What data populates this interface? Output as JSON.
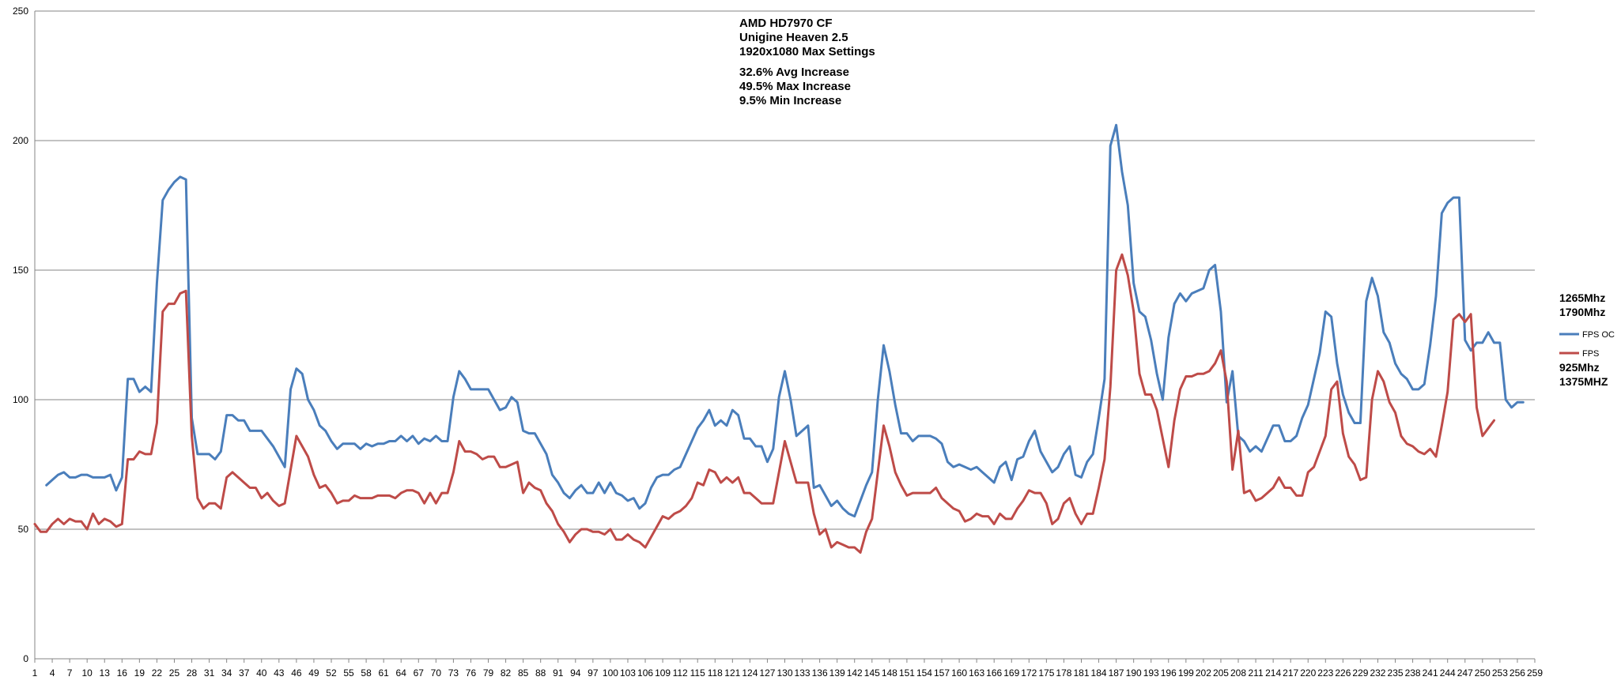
{
  "chart_data": {
    "type": "line",
    "title_lines": [
      "AMD HD7970 CF",
      "Unigine Heaven 2.5",
      "1920x1080 Max Settings"
    ],
    "stat_lines": [
      "32.6% Avg Increase",
      "49.5% Max Increase",
      "9.5% Min Increase"
    ],
    "xlabel": "",
    "ylabel": "",
    "ylim": [
      0,
      250
    ],
    "yticks": [
      0,
      50,
      100,
      150,
      200,
      250
    ],
    "xlim": [
      1,
      259
    ],
    "xticks": [
      1,
      4,
      7,
      10,
      13,
      16,
      19,
      22,
      25,
      28,
      31,
      34,
      37,
      40,
      43,
      46,
      49,
      52,
      55,
      58,
      61,
      64,
      67,
      70,
      73,
      76,
      79,
      82,
      85,
      88,
      91,
      94,
      97,
      100,
      103,
      106,
      109,
      112,
      115,
      118,
      121,
      124,
      127,
      130,
      133,
      136,
      139,
      142,
      145,
      148,
      151,
      154,
      157,
      160,
      163,
      166,
      169,
      172,
      175,
      178,
      181,
      184,
      187,
      190,
      193,
      196,
      199,
      202,
      205,
      208,
      211,
      214,
      217,
      220,
      223,
      226,
      229,
      232,
      235,
      238,
      241,
      244,
      247,
      250,
      253,
      256,
      259
    ],
    "grid": true,
    "legend_position": "right",
    "legend_top_note": [
      "1265Mhz",
      "1790Mhz"
    ],
    "legend_bottom_note": [
      "925Mhz",
      "1375MHZ"
    ],
    "series": [
      {
        "name": "FPS OC",
        "color": "#4a7ebb",
        "start_x": 3,
        "values": [
          67,
          69,
          71,
          72,
          70,
          70,
          71,
          71,
          70,
          70,
          70,
          71,
          65,
          70,
          108,
          108,
          103,
          105,
          103,
          145,
          177,
          181,
          184,
          186,
          185,
          93,
          79,
          79,
          79,
          77,
          80,
          94,
          94,
          92,
          92,
          88,
          88,
          88,
          85,
          82,
          78,
          74,
          104,
          112,
          110,
          100,
          96,
          90,
          88,
          84,
          81,
          83,
          83,
          83,
          81,
          83,
          82,
          83,
          83,
          84,
          84,
          86,
          84,
          86,
          83,
          85,
          84,
          86,
          84,
          84,
          101,
          111,
          108,
          104,
          104,
          104,
          104,
          100,
          96,
          97,
          101,
          99,
          88,
          87,
          87,
          83,
          79,
          71,
          68,
          64,
          62,
          65,
          67,
          64,
          64,
          68,
          64,
          68,
          64,
          63,
          61,
          62,
          58,
          60,
          66,
          70,
          71,
          71,
          73,
          74,
          79,
          84,
          89,
          92,
          96,
          90,
          92,
          90,
          96,
          94,
          85,
          85,
          82,
          82,
          76,
          81,
          101,
          111,
          100,
          86,
          88,
          90,
          66,
          67,
          63,
          59,
          61,
          58,
          56,
          55,
          61,
          67,
          72,
          100,
          121,
          111,
          98,
          87,
          87,
          84,
          86,
          86,
          86,
          85,
          83,
          76,
          74,
          75,
          74,
          73,
          74,
          72,
          70,
          68,
          74,
          76,
          69,
          77,
          78,
          84,
          88,
          80,
          76,
          72,
          74,
          79,
          82,
          71,
          70,
          76,
          79,
          93,
          108,
          198,
          206,
          188,
          175,
          145,
          134,
          132,
          123,
          110,
          100,
          124,
          137,
          141,
          138,
          141,
          142,
          143,
          150,
          152,
          134,
          99,
          111,
          86,
          84,
          80,
          82,
          80,
          85,
          90,
          90,
          84,
          84,
          86,
          93,
          98,
          108,
          118,
          134,
          132,
          114,
          102,
          95,
          91,
          91,
          138,
          147,
          140,
          126,
          122,
          114,
          110,
          108,
          104,
          104,
          106,
          121,
          140,
          172,
          176,
          178,
          178,
          123,
          119,
          122,
          122,
          126,
          122,
          122,
          100,
          97,
          99,
          99
        ]
      },
      {
        "name": "FPS",
        "color": "#be4b48",
        "start_x": 1,
        "values": [
          52,
          49,
          49,
          52,
          54,
          52,
          54,
          53,
          53,
          50,
          56,
          52,
          54,
          53,
          51,
          52,
          77,
          77,
          80,
          79,
          79,
          91,
          134,
          137,
          137,
          141,
          142,
          86,
          62,
          58,
          60,
          60,
          58,
          70,
          72,
          70,
          68,
          66,
          66,
          62,
          64,
          61,
          59,
          60,
          73,
          86,
          82,
          78,
          71,
          66,
          67,
          64,
          60,
          61,
          61,
          63,
          62,
          62,
          62,
          63,
          63,
          63,
          62,
          64,
          65,
          65,
          64,
          60,
          64,
          60,
          64,
          64,
          72,
          84,
          80,
          80,
          79,
          77,
          78,
          78,
          74,
          74,
          75,
          76,
          64,
          68,
          66,
          65,
          60,
          57,
          52,
          49,
          45,
          48,
          50,
          50,
          49,
          49,
          48,
          50,
          46,
          46,
          48,
          46,
          45,
          43,
          47,
          51,
          55,
          54,
          56,
          57,
          59,
          62,
          68,
          67,
          73,
          72,
          68,
          70,
          68,
          70,
          64,
          64,
          62,
          60,
          60,
          60,
          72,
          84,
          76,
          68,
          68,
          68,
          56,
          48,
          50,
          43,
          45,
          44,
          43,
          43,
          41,
          49,
          54,
          72,
          90,
          82,
          72,
          67,
          63,
          64,
          64,
          64,
          64,
          66,
          62,
          60,
          58,
          57,
          53,
          54,
          56,
          55,
          55,
          52,
          56,
          54,
          54,
          58,
          61,
          65,
          64,
          64,
          60,
          52,
          54,
          60,
          62,
          56,
          52,
          56,
          56,
          66,
          77,
          105,
          150,
          156,
          148,
          134,
          110,
          102,
          102,
          96,
          85,
          74,
          92,
          104,
          109,
          109,
          110,
          110,
          111,
          114,
          119,
          107,
          73,
          88,
          64,
          65,
          61,
          62,
          64,
          66,
          70,
          66,
          66,
          63,
          63,
          72,
          74,
          80,
          86,
          104,
          107,
          87,
          78,
          75,
          69,
          70,
          100,
          111,
          107,
          99,
          95,
          86,
          83,
          82,
          80,
          79,
          81,
          78,
          90,
          103,
          131,
          133,
          130,
          133,
          97,
          86,
          89,
          92
        ]
      }
    ]
  }
}
